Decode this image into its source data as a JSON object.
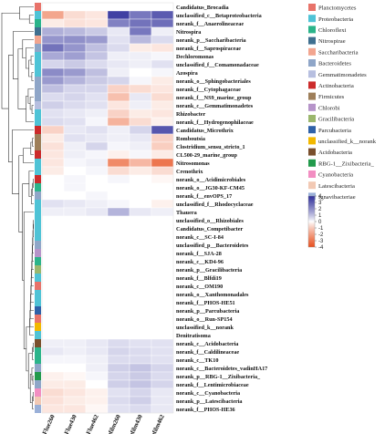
{
  "chart_data": {
    "type": "heatmap",
    "title": "",
    "columns": [
      "Flue260",
      "Flue430",
      "Flue462",
      "Biofilm260",
      "Biofilm430",
      "Biofilm462"
    ],
    "rows": [
      {
        "taxon": "Candidatus_Brocadia",
        "phylum": "Planctomycetes",
        "values": [
          0.0,
          0.0,
          0.0,
          0.0,
          0.0,
          0.0
        ]
      },
      {
        "taxon": "unclassified_c__Betaproteobacteria",
        "phylum": "Proteobacteria",
        "values": [
          -1.8,
          -0.6,
          -0.4,
          3.6,
          2.4,
          3.0
        ]
      },
      {
        "taxon": "norank_f__Anaerolineaceae",
        "phylum": "Chloroflexi",
        "values": [
          -0.3,
          -0.5,
          -0.4,
          2.2,
          2.5,
          2.6
        ]
      },
      {
        "taxon": "Nitrospira",
        "phylum": "Nitrospirae",
        "values": [
          1.3,
          1.1,
          0.8,
          0.3,
          2.4,
          0.2
        ]
      },
      {
        "taxon": "norank_p__Saccharibacteria",
        "phylum": "Saccharibacteria",
        "values": [
          1.8,
          1.9,
          1.7,
          0.4,
          1.1,
          0.5
        ]
      },
      {
        "taxon": "norank_f__Saprospiraceae",
        "phylum": "Bacteroidetes",
        "values": [
          2.5,
          1.8,
          1.0,
          0.5,
          -0.3,
          -0.4
        ]
      },
      {
        "taxon": "Dechloromonas",
        "phylum": "Proteobacteria",
        "values": [
          1.4,
          1.6,
          0.9,
          0.2,
          0.2,
          0.1
        ]
      },
      {
        "taxon": "unclassified_f__Comamonadaceae",
        "phylum": "Proteobacteria",
        "values": [
          0.6,
          0.8,
          0.5,
          0.3,
          0.2,
          0.4
        ]
      },
      {
        "taxon": "Azospira",
        "phylum": "Proteobacteria",
        "values": [
          2.0,
          1.7,
          1.0,
          0.2,
          0.0,
          0.1
        ]
      },
      {
        "taxon": "norank_o__Sphingobacteriales",
        "phylum": "Bacteroidetes",
        "values": [
          1.7,
          1.2,
          0.8,
          0.6,
          0.1,
          -0.3
        ]
      },
      {
        "taxon": "norank_f__Cytophagaceae",
        "phylum": "Bacteroidetes",
        "values": [
          1.0,
          0.6,
          0.6,
          -0.8,
          -0.6,
          -0.4
        ]
      },
      {
        "taxon": "norank_f__NS9_marine_group",
        "phylum": "Bacteroidetes",
        "values": [
          0.5,
          0.6,
          0.4,
          -1.2,
          0.3,
          -0.6
        ]
      },
      {
        "taxon": "norank_c__Gemmatimonadetes",
        "phylum": "Gemmatimonadetes",
        "values": [
          0.7,
          0.5,
          0.4,
          -0.4,
          0.2,
          -0.3
        ]
      },
      {
        "taxon": "Rhizobacter",
        "phylum": "Proteobacteria",
        "values": [
          0.4,
          0.3,
          0.2,
          -0.8,
          -0.3,
          -0.4
        ]
      },
      {
        "taxon": "norank_f__Hydrogenophilaceae",
        "phylum": "Proteobacteria",
        "values": [
          0.5,
          0.4,
          0.1,
          -1.5,
          -0.6,
          -0.2
        ]
      },
      {
        "taxon": "Candidatus_Microthrix",
        "phylum": "Actinobacteria",
        "values": [
          -0.8,
          0.3,
          0.4,
          0.2,
          0.6,
          3.1
        ]
      },
      {
        "taxon": "Romboutsia",
        "phylum": "Firmicutes",
        "values": [
          -0.3,
          0.4,
          0.3,
          0.2,
          0.3,
          -0.8
        ]
      },
      {
        "taxon": "Clostridium_sensu_stricto_1",
        "phylum": "Firmicutes",
        "values": [
          -0.5,
          0.2,
          0.6,
          0.1,
          0.2,
          -0.9
        ]
      },
      {
        "taxon": "CL500-29_marine_group",
        "phylum": "Actinobacteria",
        "values": [
          -0.4,
          0.2,
          0.1,
          -0.2,
          0.1,
          -0.3
        ]
      },
      {
        "taxon": "Nitrosomonas",
        "phylum": "Proteobacteria",
        "values": [
          -0.4,
          0.1,
          0.2,
          -2.5,
          -1.4,
          -3.0
        ]
      },
      {
        "taxon": "Crenothrix",
        "phylum": "Proteobacteria",
        "values": [
          -0.3,
          0.0,
          0.1,
          -0.6,
          -0.3,
          -0.6
        ]
      },
      {
        "taxon": "norank_o__Acidimicrobiales",
        "phylum": "Actinobacteria",
        "values": [
          0.0,
          0.1,
          0.0,
          0.1,
          0.0,
          -0.1
        ]
      },
      {
        "taxon": "norank_o__JG30-KF-CM45",
        "phylum": "Chloroflexi",
        "values": [
          0.0,
          0.1,
          0.0,
          0.0,
          0.0,
          0.0
        ]
      },
      {
        "taxon": "norank_f__envOPS_17",
        "phylum": "Bacteroidetes",
        "values": [
          0.0,
          0.0,
          0.1,
          0.0,
          0.0,
          0.0
        ]
      },
      {
        "taxon": "unclassified_f__Rhodocyclaceae",
        "phylum": "Proteobacteria",
        "values": [
          0.4,
          0.3,
          0.2,
          0.1,
          0.0,
          -0.2
        ]
      },
      {
        "taxon": "Thauera",
        "phylum": "Proteobacteria",
        "values": [
          0.2,
          0.2,
          0.3,
          1.2,
          0.3,
          0.2
        ]
      },
      {
        "taxon": "unclassified_o__Rhizobiales",
        "phylum": "Proteobacteria",
        "values": [
          0.0,
          0.0,
          0.0,
          0.0,
          0.0,
          0.0
        ]
      },
      {
        "taxon": "Candidatus_Competibacter",
        "phylum": "Proteobacteria",
        "values": [
          0.0,
          0.0,
          0.0,
          0.0,
          0.0,
          0.0
        ]
      },
      {
        "taxon": "norank_c__SC-I-84",
        "phylum": "Proteobacteria",
        "values": [
          0.0,
          0.0,
          0.0,
          0.0,
          0.0,
          0.0
        ]
      },
      {
        "taxon": "unclassified_p__Bacteroidetes",
        "phylum": "Bacteroidetes",
        "values": [
          0.0,
          0.0,
          0.0,
          0.0,
          0.0,
          0.0
        ]
      },
      {
        "taxon": "norank_f__SJA-28",
        "phylum": "Chlorobi",
        "values": [
          0.0,
          0.0,
          0.0,
          0.0,
          0.0,
          0.0
        ]
      },
      {
        "taxon": "norank_c__KD4-96",
        "phylum": "Chloroflexi",
        "values": [
          0.0,
          0.0,
          0.0,
          0.0,
          0.0,
          0.0
        ]
      },
      {
        "taxon": "norank_p__Gracilibacteria",
        "phylum": "Gracilibacteria",
        "values": [
          0.0,
          0.0,
          0.0,
          0.0,
          0.0,
          0.0
        ]
      },
      {
        "taxon": "norank_f__Blfdi19",
        "phylum": "Proteobacteria",
        "values": [
          0.0,
          0.0,
          0.0,
          0.0,
          0.0,
          0.0
        ]
      },
      {
        "taxon": "norank_c__OM190",
        "phylum": "Planctomycetes",
        "values": [
          0.0,
          0.0,
          0.0,
          0.0,
          0.0,
          0.0
        ]
      },
      {
        "taxon": "norank_o__Xanthomonadales",
        "phylum": "Proteobacteria",
        "values": [
          0.0,
          0.0,
          0.0,
          0.0,
          0.0,
          0.0
        ]
      },
      {
        "taxon": "norank_f__PHOS-HE51",
        "phylum": "Proteobacteria",
        "values": [
          0.0,
          0.0,
          0.0,
          0.0,
          0.0,
          0.0
        ]
      },
      {
        "taxon": "norank_p__Parcubacteria",
        "phylum": "Parcubacteria",
        "values": [
          0.0,
          0.0,
          0.0,
          0.0,
          0.0,
          0.0
        ]
      },
      {
        "taxon": "norank_o__Run-SP154",
        "phylum": "Planctomycetes",
        "values": [
          0.0,
          0.0,
          0.0,
          0.0,
          0.0,
          0.0
        ]
      },
      {
        "taxon": "unclassified_k__norank",
        "phylum": "unclassified_k__norank",
        "values": [
          0.0,
          0.0,
          0.0,
          0.0,
          0.0,
          0.0
        ]
      },
      {
        "taxon": "Denitratisoma",
        "phylum": "Proteobacteria",
        "values": [
          0.0,
          0.0,
          0.0,
          0.0,
          0.0,
          0.0
        ]
      },
      {
        "taxon": "norank_c__Acidobacteria",
        "phylum": "Acidobacteria",
        "values": [
          0.2,
          0.2,
          0.3,
          0.5,
          0.4,
          0.4
        ]
      },
      {
        "taxon": "norank_f__Caldilineaceae",
        "phylum": "Chloroflexi",
        "values": [
          0.3,
          0.2,
          0.3,
          0.6,
          0.5,
          0.4
        ]
      },
      {
        "taxon": "norank_c__TK10",
        "phylum": "Chloroflexi",
        "values": [
          0.1,
          0.1,
          0.2,
          0.5,
          0.5,
          0.4
        ]
      },
      {
        "taxon": "norank_c__Bacteroidetes_vadinHA17",
        "phylum": "Bacteroidetes",
        "values": [
          0.0,
          0.0,
          0.2,
          0.7,
          0.9,
          0.6
        ]
      },
      {
        "taxon": "norank_p__RBG-1__Zixibacteria_",
        "phylum": "RBG-1__Zixibacteria_",
        "values": [
          -0.2,
          -0.1,
          0.1,
          0.6,
          0.8,
          0.5
        ]
      },
      {
        "taxon": "norank_f__Lentimicrobiaceae",
        "phylum": "Bacteroidetes",
        "values": [
          -0.3,
          -0.3,
          0.0,
          0.7,
          0.9,
          0.6
        ]
      },
      {
        "taxon": "norank_c__Cyanobacteria",
        "phylum": "Cyanobacteria",
        "values": [
          -0.6,
          -0.4,
          -0.2,
          0.4,
          0.6,
          0.3
        ]
      },
      {
        "taxon": "norank_p__Latescibacteria",
        "phylum": "Latescibacteria",
        "values": [
          -0.5,
          -0.3,
          -0.2,
          0.5,
          0.7,
          0.3
        ]
      },
      {
        "taxon": "norank_f__PHOS-HE36",
        "phylum": "Ignavibacteriae",
        "values": [
          -0.4,
          -0.4,
          -0.1,
          0.4,
          0.5,
          0.3
        ]
      }
    ],
    "legend": [
      {
        "name": "Planctomycetes",
        "color": "#e8736a"
      },
      {
        "name": "Proteobacteria",
        "color": "#4fc3d6"
      },
      {
        "name": "Chloroflexi",
        "color": "#2bb48a"
      },
      {
        "name": "Nitrospirae",
        "color": "#3f6f8f"
      },
      {
        "name": "Saccharibacteria",
        "color": "#f2a58f"
      },
      {
        "name": "Bacteroidetes",
        "color": "#8fa6c8"
      },
      {
        "name": "Gemmatimonadetes",
        "color": "#b7bfe0"
      },
      {
        "name": "Actinobacteria",
        "color": "#cc2b2b"
      },
      {
        "name": "Firmicutes",
        "color": "#9e7f5a"
      },
      {
        "name": "Chlorobi",
        "color": "#b694c9"
      },
      {
        "name": "Gracilibacteria",
        "color": "#9bb76d"
      },
      {
        "name": "Parcubacteria",
        "color": "#2f61a8"
      },
      {
        "name": "unclassified_k__norank",
        "color": "#f2b800"
      },
      {
        "name": "Acidobacteria",
        "color": "#7a4f2d"
      },
      {
        "name": "RBG-1__Zixibacteria_",
        "color": "#229a4c"
      },
      {
        "name": "Cyanobacteria",
        "color": "#f28ec2"
      },
      {
        "name": "Latescibacteria",
        "color": "#f2c9b4"
      },
      {
        "name": "Ignavibacteriae",
        "color": "#9ab0d8"
      }
    ],
    "colorbar": {
      "min": -4,
      "max": 4,
      "ticks": [
        4,
        3,
        2,
        1,
        0,
        -1,
        -2,
        -3,
        -4
      ],
      "low_color": "#e8501e",
      "mid_color": "#ffffff",
      "high_color": "#2e2e9a"
    }
  }
}
